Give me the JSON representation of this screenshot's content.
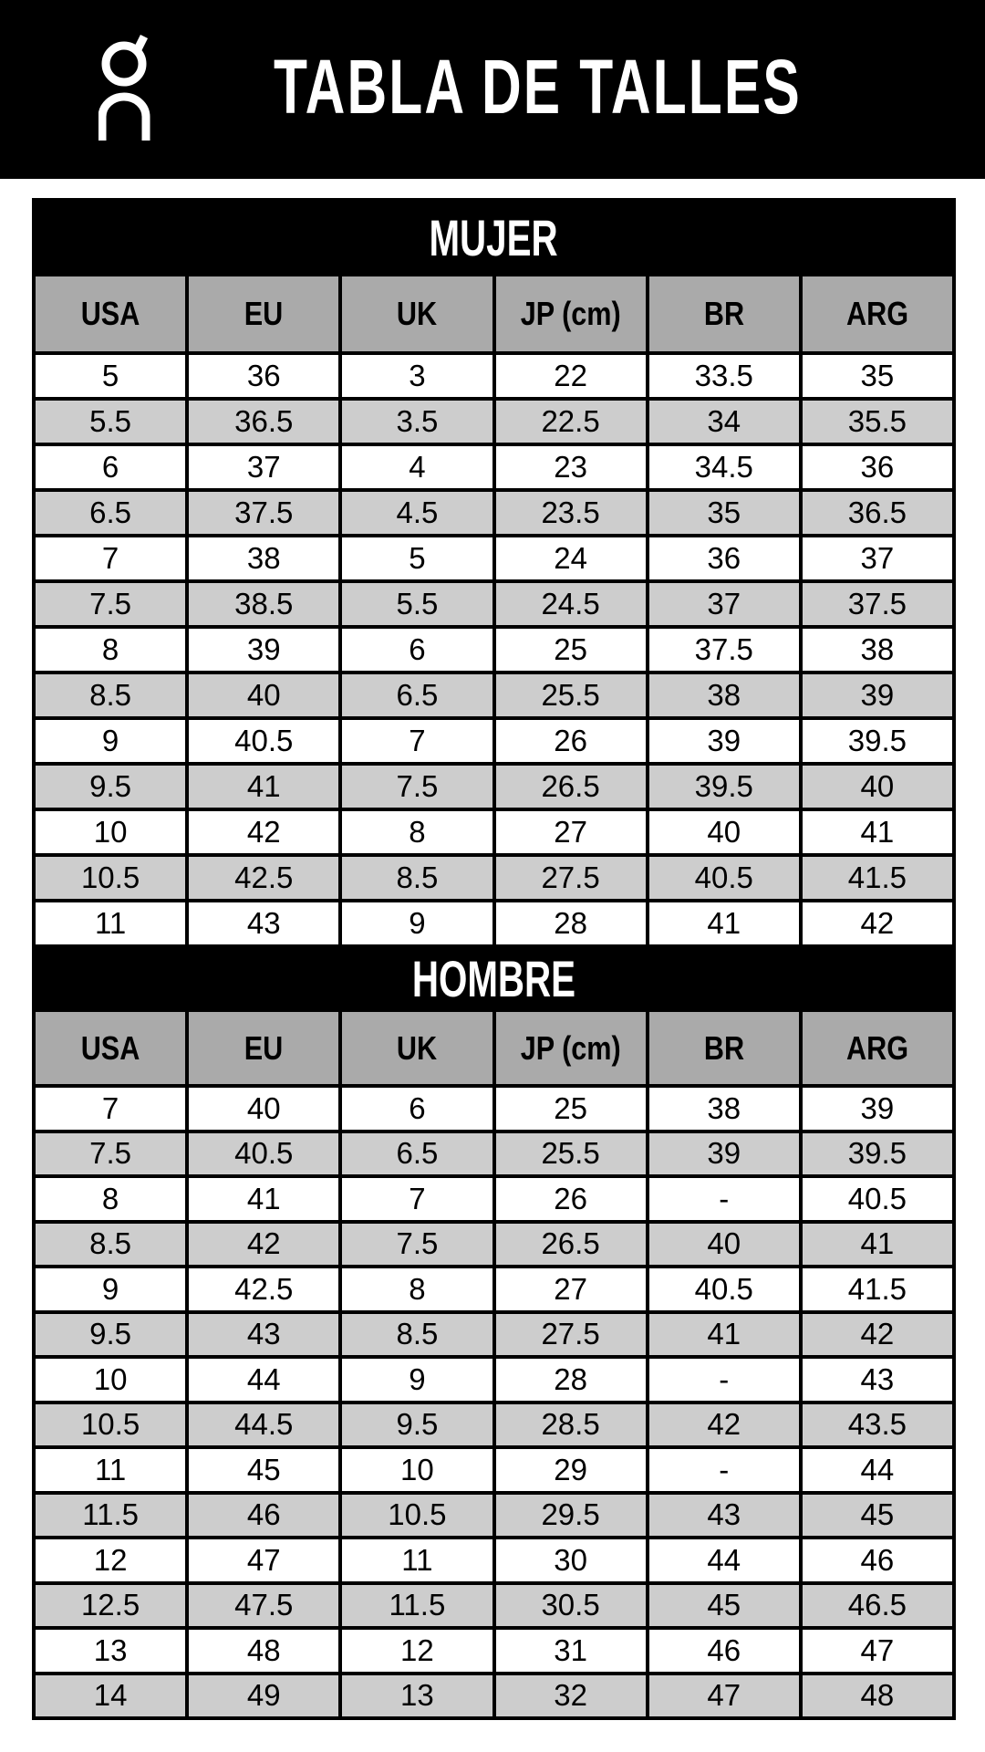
{
  "header": {
    "title": "TABLA DE TALLES",
    "logo": "On"
  },
  "colors": {
    "header_bg": "#000000",
    "column_header_bg": "#aaaaaa",
    "row_alt_bg": "#cdcdcd",
    "row_bg": "#ffffff"
  },
  "sections": [
    {
      "title": "MUJER",
      "columns": [
        "USA",
        "EU",
        "UK",
        "JP (cm)",
        "BR",
        "ARG"
      ],
      "rows": [
        [
          "5",
          "36",
          "3",
          "22",
          "33.5",
          "35"
        ],
        [
          "5.5",
          "36.5",
          "3.5",
          "22.5",
          "34",
          "35.5"
        ],
        [
          "6",
          "37",
          "4",
          "23",
          "34.5",
          "36"
        ],
        [
          "6.5",
          "37.5",
          "4.5",
          "23.5",
          "35",
          "36.5"
        ],
        [
          "7",
          "38",
          "5",
          "24",
          "36",
          "37"
        ],
        [
          "7.5",
          "38.5",
          "5.5",
          "24.5",
          "37",
          "37.5"
        ],
        [
          "8",
          "39",
          "6",
          "25",
          "37.5",
          "38"
        ],
        [
          "8.5",
          "40",
          "6.5",
          "25.5",
          "38",
          "39"
        ],
        [
          "9",
          "40.5",
          "7",
          "26",
          "39",
          "39.5"
        ],
        [
          "9.5",
          "41",
          "7.5",
          "26.5",
          "39.5",
          "40"
        ],
        [
          "10",
          "42",
          "8",
          "27",
          "40",
          "41"
        ],
        [
          "10.5",
          "42.5",
          "8.5",
          "27.5",
          "40.5",
          "41.5"
        ],
        [
          "11",
          "43",
          "9",
          "28",
          "41",
          "42"
        ]
      ]
    },
    {
      "title": "HOMBRE",
      "columns": [
        "USA",
        "EU",
        "UK",
        "JP (cm)",
        "BR",
        "ARG"
      ],
      "rows": [
        [
          "7",
          "40",
          "6",
          "25",
          "38",
          "39"
        ],
        [
          "7.5",
          "40.5",
          "6.5",
          "25.5",
          "39",
          "39.5"
        ],
        [
          "8",
          "41",
          "7",
          "26",
          "-",
          "40.5"
        ],
        [
          "8.5",
          "42",
          "7.5",
          "26.5",
          "40",
          "41"
        ],
        [
          "9",
          "42.5",
          "8",
          "27",
          "40.5",
          "41.5"
        ],
        [
          "9.5",
          "43",
          "8.5",
          "27.5",
          "41",
          "42"
        ],
        [
          "10",
          "44",
          "9",
          "28",
          "-",
          "43"
        ],
        [
          "10.5",
          "44.5",
          "9.5",
          "28.5",
          "42",
          "43.5"
        ],
        [
          "11",
          "45",
          "10",
          "29",
          "-",
          "44"
        ],
        [
          "11.5",
          "46",
          "10.5",
          "29.5",
          "43",
          "45"
        ],
        [
          "12",
          "47",
          "11",
          "30",
          "44",
          "46"
        ],
        [
          "12.5",
          "47.5",
          "11.5",
          "30.5",
          "45",
          "46.5"
        ],
        [
          "13",
          "48",
          "12",
          "31",
          "46",
          "47"
        ],
        [
          "14",
          "49",
          "13",
          "32",
          "47",
          "48"
        ]
      ]
    }
  ]
}
